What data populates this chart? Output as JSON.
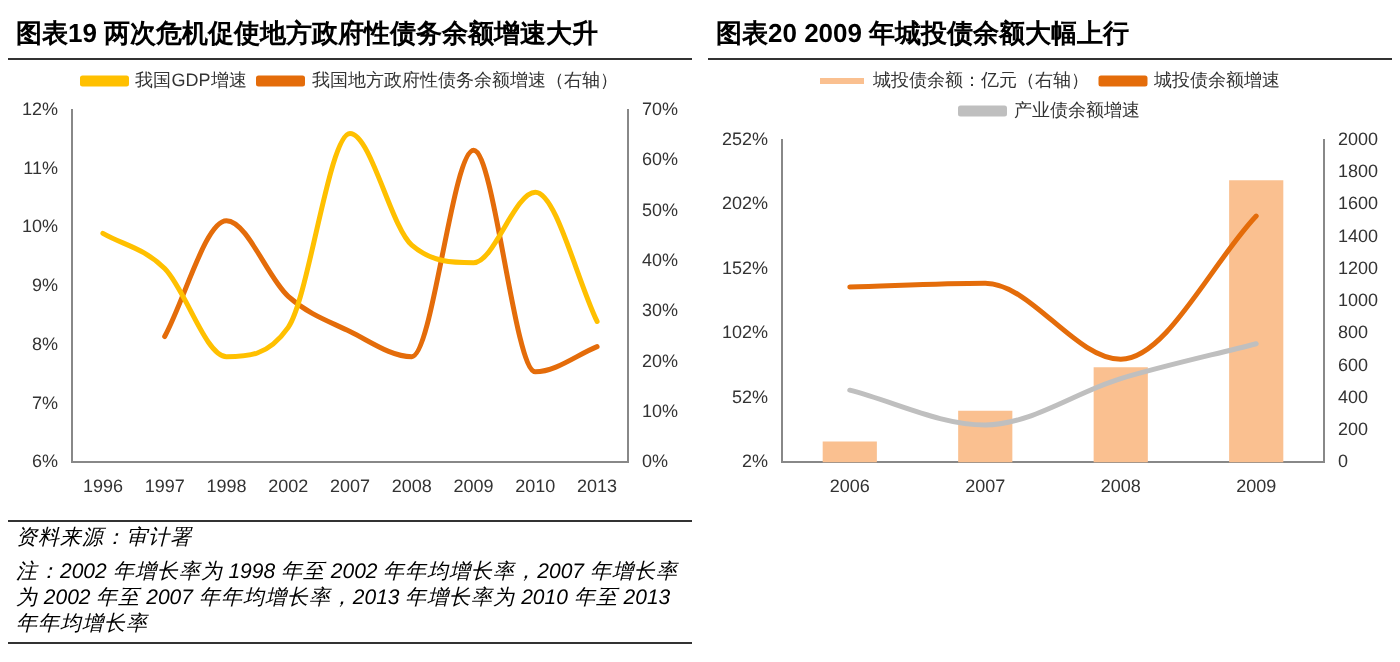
{
  "chart_data": [
    {
      "type": "line",
      "title": "图表19  两次危机促使地方政府性债务余额增速大升",
      "categories": [
        "1996",
        "1997",
        "1998",
        "2002",
        "2007",
        "2008",
        "2009",
        "2010",
        "2013"
      ],
      "series": [
        {
          "name": "我国GDP增速",
          "color": "#ffc000",
          "values": [
            9.9,
            9.3,
            7.8,
            8.3,
            11.6,
            9.7,
            9.4,
            10.6,
            8.4
          ]
        },
        {
          "name": "我国地方政府性债务余额增速（右轴）",
          "color": "#e46c0a",
          "axis": "y2",
          "values": [
            null,
            25,
            48,
            33,
            26,
            21,
            62,
            18,
            23
          ]
        }
      ],
      "ylim": [
        6,
        12
      ],
      "yticks": [
        {
          "value": 6,
          "label": "6%"
        },
        {
          "value": 7,
          "label": "7%"
        },
        {
          "value": 8,
          "label": "8%"
        },
        {
          "value": 9,
          "label": "9%"
        },
        {
          "value": 10,
          "label": "10%"
        },
        {
          "value": 11,
          "label": "11%"
        },
        {
          "value": 12,
          "label": "12%"
        }
      ],
      "y2lim": [
        0,
        70
      ],
      "y2ticks": [
        {
          "value": 0,
          "label": "0%"
        },
        {
          "value": 10,
          "label": "10%"
        },
        {
          "value": 20,
          "label": "20%"
        },
        {
          "value": 30,
          "label": "30%"
        },
        {
          "value": 40,
          "label": "40%"
        },
        {
          "value": 50,
          "label": "50%"
        },
        {
          "value": 60,
          "label": "60%"
        },
        {
          "value": 70,
          "label": "70%"
        }
      ],
      "grid": false,
      "legend": "top",
      "marker": "none",
      "annotations": [
        "资料来源：审计署",
        "注：2002 年增长率为 1998 年至 2002 年年均增长率，2007 年增长率为 2002 年至 2007 年年均增长率，2013 年增长率为 2010 年至 2013 年年均增长率"
      ]
    },
    {
      "type": "bar",
      "title": "图表20  2009 年城投债余额大幅上行",
      "categories": [
        "2006",
        "2007",
        "2008",
        "2009"
      ],
      "series": [
        {
          "name": "城投债余额：亿元（右轴）",
          "type": "bar",
          "color": "#fac090",
          "axis": "y2",
          "values": [
            130,
            320,
            590,
            1750
          ]
        },
        {
          "name": "城投债余额增速",
          "type": "line",
          "color": "#e46c0a",
          "values": [
            138,
            141,
            82,
            193
          ]
        },
        {
          "name": "产业债余额增速",
          "type": "line",
          "color": "#bfbfbf",
          "values": [
            58,
            31,
            67,
            94
          ]
        }
      ],
      "ylim": [
        2,
        252
      ],
      "yticks": [
        {
          "value": 2,
          "label": "2%"
        },
        {
          "value": 52,
          "label": "52%"
        },
        {
          "value": 102,
          "label": "102%"
        },
        {
          "value": 152,
          "label": "152%"
        },
        {
          "value": 202,
          "label": "202%"
        },
        {
          "value": 252,
          "label": "252%"
        }
      ],
      "y2lim": [
        0,
        2000
      ],
      "y2ticks": [
        0,
        200,
        400,
        600,
        800,
        1000,
        1200,
        1400,
        1600,
        1800,
        2000
      ],
      "grid": false,
      "legend": "top",
      "marker": "none"
    }
  ]
}
